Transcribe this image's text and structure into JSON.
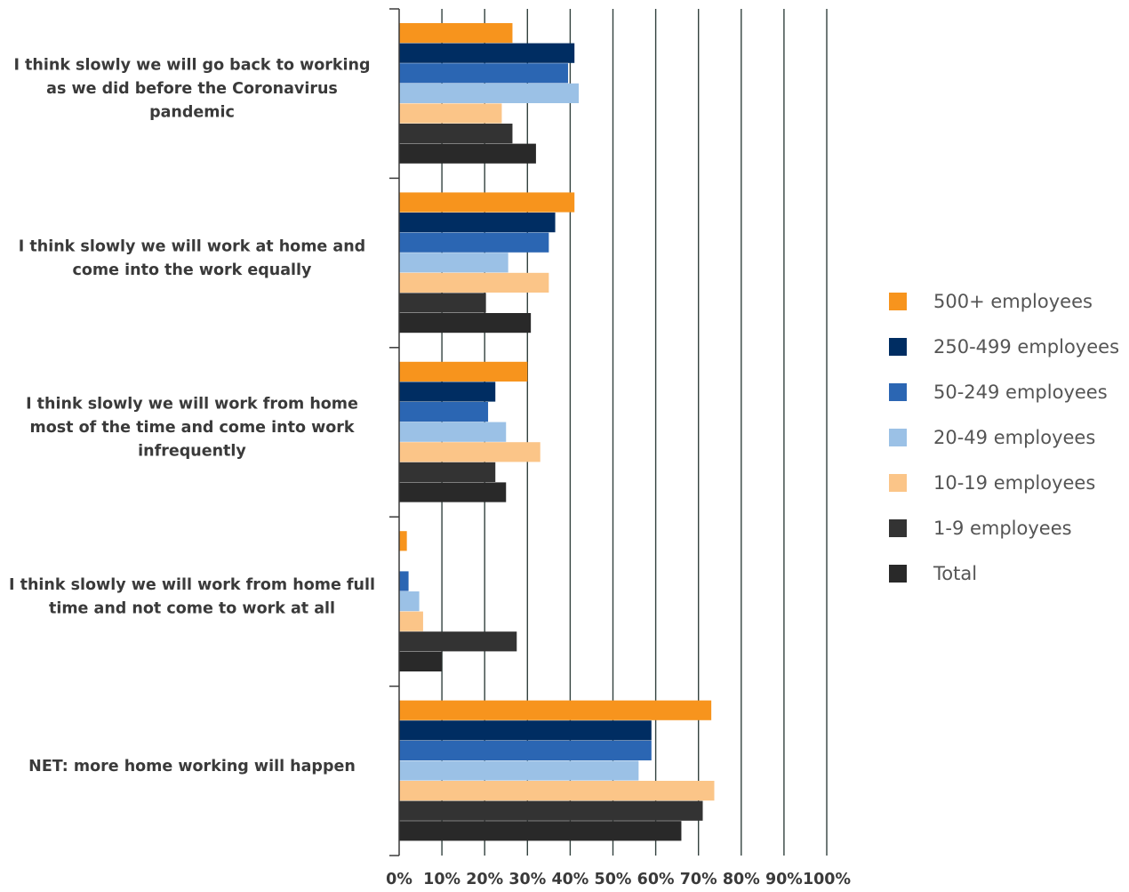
{
  "chart_data": {
    "type": "bar",
    "orientation": "horizontal",
    "categories": [
      [
        "I think slowly we will go back to working",
        "as we did before the Coronavirus",
        "pandemic"
      ],
      [
        "I think slowly we will work at home and",
        "come into the work equally"
      ],
      [
        "I think slowly we will work from home",
        "most of the time and come into work",
        "infrequently"
      ],
      [
        "I think slowly we will work from home full",
        "time and not come to work at all"
      ],
      [
        "NET: more home working will happen"
      ]
    ],
    "series": [
      {
        "name": "500+ employees",
        "color": "#F7941D",
        "values": [
          26.5,
          41,
          30,
          1.8,
          73
        ]
      },
      {
        "name": "250-499 employees",
        "color": "#002D62",
        "values": [
          41,
          36.5,
          22.5,
          0,
          59
        ]
      },
      {
        "name": "50-249 employees",
        "color": "#2B66B3",
        "values": [
          39.5,
          35,
          20.8,
          2.2,
          59
        ]
      },
      {
        "name": "20-49 employees",
        "color": "#9BC1E6",
        "values": [
          42,
          25.5,
          25,
          4.7,
          56
        ]
      },
      {
        "name": "10-19 employees",
        "color": "#FBC588",
        "values": [
          24,
          35,
          33,
          5.6,
          73.7
        ]
      },
      {
        "name": "1-9 employees",
        "color": "#333333",
        "values": [
          26.5,
          20.3,
          22.5,
          27.5,
          71
        ]
      },
      {
        "name": "Total",
        "color": "#292929",
        "values": [
          32,
          30.8,
          25,
          10,
          66
        ]
      }
    ],
    "xlim": [
      0,
      100
    ],
    "xticks": [
      "0%",
      "10%",
      "20%",
      "30%",
      "40%",
      "50%",
      "60%",
      "70%",
      "80%",
      "90%",
      "100%"
    ],
    "grid": true,
    "legend_position": "right"
  }
}
